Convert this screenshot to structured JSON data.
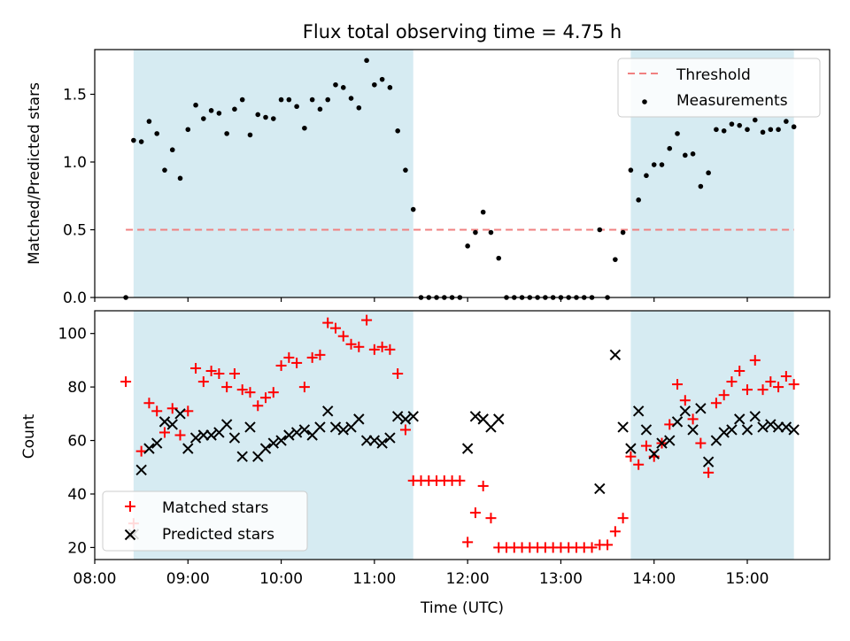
{
  "chart_data": [
    {
      "type": "scatter",
      "title": "Flux total observing time = 4.75 h",
      "ylabel": "Matched/Predicted stars",
      "xlabel": "",
      "xlim": [
        "08:00",
        "15:53"
      ],
      "ylim": [
        0,
        1.83
      ],
      "yticks": [
        "0.0",
        "0.5",
        "1.0",
        "1.5"
      ],
      "shaded_intervals": [
        [
          "08:25",
          "11:25"
        ],
        [
          "13:45",
          "15:30"
        ]
      ],
      "shade_color": "#add8e6",
      "legend_position": "upper right",
      "threshold": {
        "name": "Threshold",
        "value": 0.5,
        "x_start": "08:20",
        "x_end": "15:30",
        "color": "#f08080",
        "style": "dashed"
      },
      "series": [
        {
          "name": "Measurements",
          "color": "#000000",
          "marker": "dot",
          "points": [
            [
              "08:20",
              0.0
            ],
            [
              "08:25",
              1.16
            ],
            [
              "08:30",
              1.15
            ],
            [
              "08:35",
              1.3
            ],
            [
              "08:40",
              1.21
            ],
            [
              "08:45",
              0.94
            ],
            [
              "08:50",
              1.09
            ],
            [
              "08:55",
              0.88
            ],
            [
              "09:00",
              1.24
            ],
            [
              "09:05",
              1.42
            ],
            [
              "09:10",
              1.32
            ],
            [
              "09:15",
              1.38
            ],
            [
              "09:20",
              1.36
            ],
            [
              "09:25",
              1.21
            ],
            [
              "09:30",
              1.39
            ],
            [
              "09:35",
              1.46
            ],
            [
              "09:40",
              1.2
            ],
            [
              "09:45",
              1.35
            ],
            [
              "09:50",
              1.33
            ],
            [
              "09:55",
              1.32
            ],
            [
              "10:00",
              1.46
            ],
            [
              "10:05",
              1.46
            ],
            [
              "10:10",
              1.41
            ],
            [
              "10:15",
              1.25
            ],
            [
              "10:20",
              1.46
            ],
            [
              "10:25",
              1.39
            ],
            [
              "10:30",
              1.46
            ],
            [
              "10:35",
              1.57
            ],
            [
              "10:40",
              1.55
            ],
            [
              "10:45",
              1.47
            ],
            [
              "10:50",
              1.4
            ],
            [
              "10:55",
              1.75
            ],
            [
              "11:00",
              1.57
            ],
            [
              "11:05",
              1.61
            ],
            [
              "11:10",
              1.55
            ],
            [
              "11:15",
              1.23
            ],
            [
              "11:20",
              0.94
            ],
            [
              "11:25",
              0.65
            ],
            [
              "11:30",
              0.0
            ],
            [
              "11:35",
              0.0
            ],
            [
              "11:40",
              0.0
            ],
            [
              "11:45",
              0.0
            ],
            [
              "11:50",
              0.0
            ],
            [
              "11:55",
              0.0
            ],
            [
              "12:00",
              0.38
            ],
            [
              "12:05",
              0.48
            ],
            [
              "12:10",
              0.63
            ],
            [
              "12:15",
              0.48
            ],
            [
              "12:20",
              0.29
            ],
            [
              "12:25",
              0.0
            ],
            [
              "12:30",
              0.0
            ],
            [
              "12:35",
              0.0
            ],
            [
              "12:40",
              0.0
            ],
            [
              "12:45",
              0.0
            ],
            [
              "12:50",
              0.0
            ],
            [
              "12:55",
              0.0
            ],
            [
              "13:00",
              0.0
            ],
            [
              "13:05",
              0.0
            ],
            [
              "13:10",
              0.0
            ],
            [
              "13:15",
              0.0
            ],
            [
              "13:20",
              0.0
            ],
            [
              "13:25",
              0.5
            ],
            [
              "13:30",
              0.0
            ],
            [
              "13:35",
              0.28
            ],
            [
              "13:40",
              0.48
            ],
            [
              "13:45",
              0.94
            ],
            [
              "13:50",
              0.72
            ],
            [
              "13:55",
              0.9
            ],
            [
              "14:00",
              0.98
            ],
            [
              "14:05",
              0.98
            ],
            [
              "14:10",
              1.1
            ],
            [
              "14:15",
              1.21
            ],
            [
              "14:20",
              1.05
            ],
            [
              "14:25",
              1.06
            ],
            [
              "14:30",
              0.82
            ],
            [
              "14:35",
              0.92
            ],
            [
              "14:40",
              1.24
            ],
            [
              "14:45",
              1.23
            ],
            [
              "14:50",
              1.28
            ],
            [
              "14:55",
              1.27
            ],
            [
              "15:00",
              1.24
            ],
            [
              "15:05",
              1.31
            ],
            [
              "15:10",
              1.22
            ],
            [
              "15:15",
              1.24
            ],
            [
              "15:20",
              1.24
            ],
            [
              "15:25",
              1.3
            ],
            [
              "15:30",
              1.26
            ]
          ]
        }
      ]
    },
    {
      "type": "scatter",
      "title": "",
      "xlabel": "Time (UTC)",
      "ylabel": "Count",
      "xlim": [
        "08:00",
        "15:53"
      ],
      "ylim": [
        15.5,
        108.5
      ],
      "xticks": [
        "08:00",
        "09:00",
        "10:00",
        "11:00",
        "12:00",
        "13:00",
        "14:00",
        "15:00"
      ],
      "yticks": [
        "20",
        "40",
        "60",
        "80",
        "100"
      ],
      "shaded_intervals": [
        [
          "08:25",
          "11:25"
        ],
        [
          "13:45",
          "15:30"
        ]
      ],
      "shade_color": "#add8e6",
      "legend_position": "lower left",
      "series": [
        {
          "name": "Matched stars",
          "color": "#ff0000",
          "marker": "plus",
          "points": [
            [
              "08:20",
              82
            ],
            [
              "08:25",
              29
            ],
            [
              "08:30",
              56
            ],
            [
              "08:35",
              74
            ],
            [
              "08:40",
              71
            ],
            [
              "08:45",
              63
            ],
            [
              "08:50",
              72
            ],
            [
              "08:55",
              62
            ],
            [
              "09:00",
              71
            ],
            [
              "09:05",
              87
            ],
            [
              "09:10",
              82
            ],
            [
              "09:15",
              86
            ],
            [
              "09:20",
              85
            ],
            [
              "09:25",
              80
            ],
            [
              "09:30",
              85
            ],
            [
              "09:35",
              79
            ],
            [
              "09:40",
              78
            ],
            [
              "09:45",
              73
            ],
            [
              "09:50",
              76
            ],
            [
              "09:55",
              78
            ],
            [
              "10:00",
              88
            ],
            [
              "10:05",
              91
            ],
            [
              "10:10",
              89
            ],
            [
              "10:15",
              80
            ],
            [
              "10:20",
              91
            ],
            [
              "10:25",
              92
            ],
            [
              "10:30",
              104
            ],
            [
              "10:35",
              102
            ],
            [
              "10:40",
              99
            ],
            [
              "10:45",
              96
            ],
            [
              "10:50",
              95
            ],
            [
              "10:55",
              105
            ],
            [
              "11:00",
              94
            ],
            [
              "11:05",
              95
            ],
            [
              "11:10",
              94
            ],
            [
              "11:15",
              85
            ],
            [
              "11:20",
              64
            ],
            [
              "11:25",
              45
            ],
            [
              "11:30",
              45
            ],
            [
              "11:35",
              45
            ],
            [
              "11:40",
              45
            ],
            [
              "11:45",
              45
            ],
            [
              "11:50",
              45
            ],
            [
              "11:55",
              45
            ],
            [
              "12:00",
              22
            ],
            [
              "12:05",
              33
            ],
            [
              "12:10",
              43
            ],
            [
              "12:15",
              31
            ],
            [
              "12:20",
              20
            ],
            [
              "12:25",
              20
            ],
            [
              "12:30",
              20
            ],
            [
              "12:35",
              20
            ],
            [
              "12:40",
              20
            ],
            [
              "12:45",
              20
            ],
            [
              "12:50",
              20
            ],
            [
              "12:55",
              20
            ],
            [
              "13:00",
              20
            ],
            [
              "13:05",
              20
            ],
            [
              "13:10",
              20
            ],
            [
              "13:15",
              20
            ],
            [
              "13:20",
              20
            ],
            [
              "13:25",
              21
            ],
            [
              "13:30",
              21
            ],
            [
              "13:35",
              26
            ],
            [
              "13:40",
              31
            ],
            [
              "13:45",
              54
            ],
            [
              "13:50",
              51
            ],
            [
              "13:55",
              58
            ],
            [
              "14:00",
              54
            ],
            [
              "14:05",
              59
            ],
            [
              "14:10",
              66
            ],
            [
              "14:15",
              81
            ],
            [
              "14:20",
              75
            ],
            [
              "14:25",
              68
            ],
            [
              "14:30",
              59
            ],
            [
              "14:35",
              48
            ],
            [
              "14:40",
              74
            ],
            [
              "14:45",
              77
            ],
            [
              "14:50",
              82
            ],
            [
              "14:55",
              86
            ],
            [
              "15:00",
              79
            ],
            [
              "15:05",
              90
            ],
            [
              "15:10",
              79
            ],
            [
              "15:15",
              82
            ],
            [
              "15:20",
              80
            ],
            [
              "15:25",
              84
            ],
            [
              "15:30",
              81
            ]
          ]
        },
        {
          "name": "Predicted stars",
          "color": "#000000",
          "marker": "x",
          "points": [
            [
              "08:25",
              25
            ],
            [
              "08:30",
              49
            ],
            [
              "08:35",
              57
            ],
            [
              "08:40",
              59
            ],
            [
              "08:45",
              67
            ],
            [
              "08:50",
              66
            ],
            [
              "08:55",
              70
            ],
            [
              "09:00",
              57
            ],
            [
              "09:05",
              61
            ],
            [
              "09:10",
              62
            ],
            [
              "09:15",
              62
            ],
            [
              "09:20",
              63
            ],
            [
              "09:25",
              66
            ],
            [
              "09:30",
              61
            ],
            [
              "09:35",
              54
            ],
            [
              "09:40",
              65
            ],
            [
              "09:45",
              54
            ],
            [
              "09:50",
              57
            ],
            [
              "09:55",
              59
            ],
            [
              "10:00",
              60
            ],
            [
              "10:05",
              62
            ],
            [
              "10:10",
              63
            ],
            [
              "10:15",
              64
            ],
            [
              "10:20",
              62
            ],
            [
              "10:25",
              65
            ],
            [
              "10:30",
              71
            ],
            [
              "10:35",
              65
            ],
            [
              "10:40",
              64
            ],
            [
              "10:45",
              65
            ],
            [
              "10:50",
              68
            ],
            [
              "10:55",
              60
            ],
            [
              "11:00",
              60
            ],
            [
              "11:05",
              59
            ],
            [
              "11:10",
              61
            ],
            [
              "11:15",
              69
            ],
            [
              "11:20",
              68
            ],
            [
              "11:25",
              69
            ],
            [
              "12:00",
              57
            ],
            [
              "12:05",
              69
            ],
            [
              "12:10",
              68
            ],
            [
              "12:15",
              65
            ],
            [
              "12:20",
              68
            ],
            [
              "13:25",
              42
            ],
            [
              "13:35",
              92
            ],
            [
              "13:40",
              65
            ],
            [
              "13:45",
              57
            ],
            [
              "13:50",
              71
            ],
            [
              "13:55",
              64
            ],
            [
              "14:00",
              55
            ],
            [
              "14:05",
              59
            ],
            [
              "14:10",
              60
            ],
            [
              "14:15",
              67
            ],
            [
              "14:20",
              71
            ],
            [
              "14:25",
              64
            ],
            [
              "14:30",
              72
            ],
            [
              "14:35",
              52
            ],
            [
              "14:40",
              60
            ],
            [
              "14:45",
              63
            ],
            [
              "14:50",
              64
            ],
            [
              "14:55",
              68
            ],
            [
              "15:00",
              64
            ],
            [
              "15:05",
              69
            ],
            [
              "15:10",
              65
            ],
            [
              "15:15",
              66
            ],
            [
              "15:20",
              65
            ],
            [
              "15:25",
              65
            ],
            [
              "15:30",
              64
            ]
          ]
        }
      ]
    }
  ]
}
